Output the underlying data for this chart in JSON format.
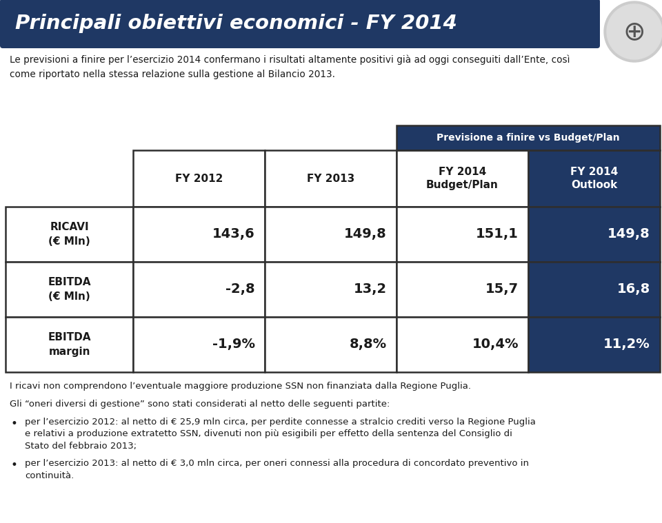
{
  "title": "Principali obiettivi economici - FY 2014",
  "title_bg_color": "#1f3864",
  "title_text_color": "#ffffff",
  "subtitle": "Le previsioni a finire per l’esercizio 2014 confermano i risultati altamente positivi già ad oggi conseguiti dall’Ente, così\ncome riportato nella stessa relazione sulla gestione al Bilancio 2013.",
  "banner_label": "Previsione a finire vs Budget/Plan",
  "banner_bg_color": "#1f3864",
  "banner_text_color": "#ffffff",
  "col_headers": [
    "FY 2012",
    "FY 2013",
    "FY 2014\nBudget/Plan",
    "FY 2014\nOutlook"
  ],
  "col_header_bg": [
    "#ffffff",
    "#ffffff",
    "#ffffff",
    "#1f3864"
  ],
  "col_header_text": [
    "#1a1a1a",
    "#1a1a1a",
    "#1a1a1a",
    "#ffffff"
  ],
  "row_labels": [
    "RICAVI\n(€ Mln)",
    "EBITDA\n(€ Mln)",
    "EBITDA\nmargin"
  ],
  "data": [
    [
      "143,6",
      "149,8",
      "151,1",
      "149,8"
    ],
    [
      "-2,8",
      "13,2",
      "15,7",
      "16,8"
    ],
    [
      "-1,9%",
      "8,8%",
      "10,4%",
      "11,2%"
    ]
  ],
  "last_col_bg": "#1f3864",
  "last_col_text": "#ffffff",
  "normal_bg": "#ffffff",
  "normal_text": "#1a1a1a",
  "label_bg": "#ffffff",
  "label_text": "#1a1a1a",
  "footnote1": "I ricavi non comprendono l’eventuale maggiore produzione SSN non finanziata dalla Regione Puglia.",
  "footnote2": "Gli “oneri diversi di gestione” sono stati considerati al netto delle seguenti partite:",
  "bullet1": "per l’esercizio 2012: al netto di € 25,9 mln circa, per perdite connesse a stralcio crediti verso la Regione Puglia\ne relativi a produzione extratetto SSN, divenuti non più esigibili per effetto della sentenza del Consiglio di\nStato del febbraio 2013;",
  "bullet2": "per l’esercizio 2013: al netto di € 3,0 mln circa, per oneri connessi alla procedura di concordato preventivo in\ncontinuità.",
  "bg_color": "#ffffff",
  "grid_color": "#2e2e2e"
}
